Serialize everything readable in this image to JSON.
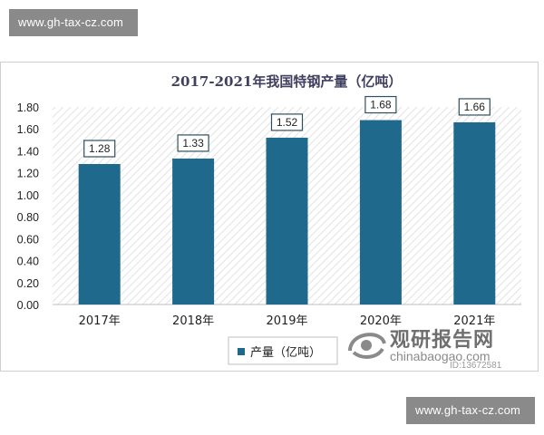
{
  "watermarks": {
    "top": "www.gh-tax-cz.com",
    "bottom": "www.gh-tax-cz.com",
    "brand_title": "观研报告网",
    "brand_sub": "chinabaogao.com",
    "brand_id": "ID:13672581"
  },
  "colors": {
    "bar": "#1f6a8c",
    "grid": "#d9d9d9",
    "text": "#222222",
    "title": "#3f3f5f"
  },
  "chart_data": {
    "type": "bar",
    "title": "2017-2021年我国特钢产量（亿吨）",
    "categories": [
      "2017年",
      "2018年",
      "2019年",
      "2020年",
      "2021年"
    ],
    "series": [
      {
        "name": "产量（亿吨）",
        "values": [
          1.28,
          1.33,
          1.52,
          1.68,
          1.66
        ]
      }
    ],
    "data_labels": [
      "1.28",
      "1.33",
      "1.52",
      "1.68",
      "1.66"
    ],
    "y_ticks": [
      "0.00",
      "0.20",
      "0.40",
      "0.60",
      "0.80",
      "1.00",
      "1.20",
      "1.40",
      "1.60",
      "1.80"
    ],
    "ylim": [
      0,
      1.8
    ],
    "legend_position": "bottom-left",
    "grid": true
  }
}
